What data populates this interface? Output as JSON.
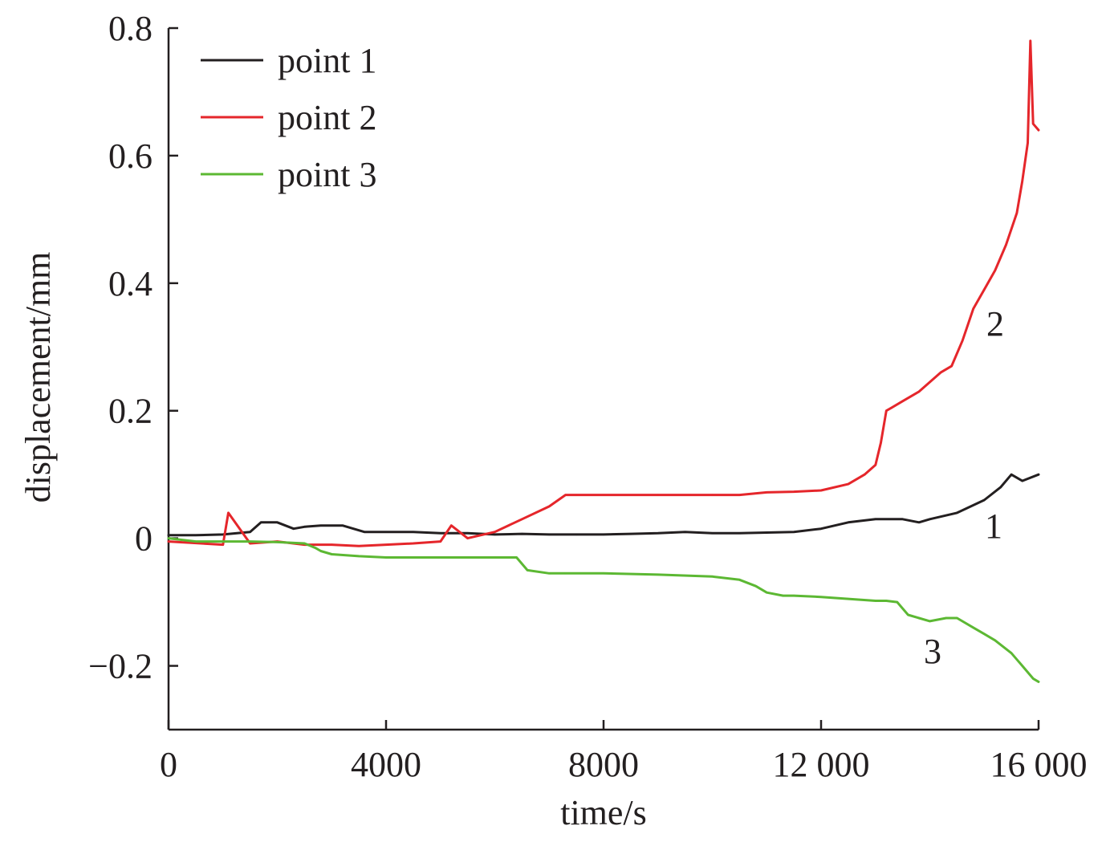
{
  "chart_data": {
    "type": "line",
    "xlabel": "time/s",
    "ylabel": "displacement/mm",
    "xlim": [
      0,
      16000
    ],
    "ylim": [
      -0.3,
      0.8
    ],
    "xticks": [
      0,
      4000,
      8000,
      12000,
      16000
    ],
    "xtick_labels": [
      "0",
      "4000",
      "8000",
      "12 000",
      "16 000"
    ],
    "yticks": [
      -0.2,
      0,
      0.2,
      0.4,
      0.6,
      0.8
    ],
    "ytick_labels": [
      "−0.2",
      "0",
      "0.2",
      "0.4",
      "0.6",
      "0.8"
    ],
    "grid": false,
    "legend_position": "top-left",
    "series": [
      {
        "name": "point 1",
        "curve_label": "1",
        "color": "#231f20",
        "x": [
          0,
          500,
          1000,
          1500,
          1700,
          2000,
          2300,
          2500,
          2800,
          3200,
          3600,
          4000,
          4500,
          5000,
          5500,
          6000,
          6500,
          7000,
          7500,
          8000,
          8500,
          9000,
          9500,
          10000,
          10500,
          11000,
          11500,
          12000,
          12500,
          13000,
          13500,
          13800,
          14000,
          14500,
          15000,
          15300,
          15500,
          15700,
          16000
        ],
        "y": [
          0.005,
          0.005,
          0.006,
          0.01,
          0.025,
          0.025,
          0.015,
          0.018,
          0.02,
          0.02,
          0.01,
          0.01,
          0.01,
          0.008,
          0.008,
          0.006,
          0.007,
          0.006,
          0.006,
          0.006,
          0.007,
          0.008,
          0.01,
          0.008,
          0.008,
          0.009,
          0.01,
          0.015,
          0.025,
          0.03,
          0.03,
          0.025,
          0.03,
          0.04,
          0.06,
          0.08,
          0.1,
          0.09,
          0.1
        ]
      },
      {
        "name": "point 2",
        "curve_label": "2",
        "color": "#e5262b",
        "x": [
          0,
          1000,
          1100,
          1500,
          2000,
          2500,
          3000,
          3500,
          4000,
          4500,
          5000,
          5200,
          5500,
          6000,
          6500,
          7000,
          7300,
          7500,
          8000,
          9000,
          9600,
          10000,
          10500,
          11000,
          11500,
          12000,
          12500,
          12800,
          13000,
          13100,
          13200,
          13300,
          13500,
          13800,
          14000,
          14200,
          14400,
          14600,
          14800,
          15000,
          15200,
          15400,
          15600,
          15700,
          15800,
          15850,
          15900,
          16000
        ],
        "y": [
          -0.005,
          -0.01,
          0.04,
          -0.008,
          -0.005,
          -0.01,
          -0.01,
          -0.012,
          -0.01,
          -0.008,
          -0.005,
          0.02,
          0.0,
          0.01,
          0.03,
          0.05,
          0.068,
          0.068,
          0.068,
          0.068,
          0.068,
          0.068,
          0.068,
          0.072,
          0.073,
          0.075,
          0.085,
          0.1,
          0.115,
          0.15,
          0.2,
          0.205,
          0.215,
          0.23,
          0.245,
          0.26,
          0.27,
          0.31,
          0.36,
          0.39,
          0.42,
          0.46,
          0.51,
          0.56,
          0.62,
          0.78,
          0.65,
          0.64
        ]
      },
      {
        "name": "point 3",
        "curve_label": "3",
        "color": "#5cb833",
        "x": [
          0,
          500,
          1000,
          1500,
          2000,
          2500,
          2700,
          2800,
          3000,
          3500,
          4000,
          5000,
          6000,
          6400,
          6600,
          7000,
          7300,
          8000,
          9000,
          10000,
          10500,
          10800,
          11000,
          11300,
          11500,
          12000,
          12500,
          13000,
          13200,
          13400,
          13600,
          13800,
          14000,
          14300,
          14500,
          14800,
          15000,
          15200,
          15500,
          15700,
          15800,
          15900,
          16000
        ],
        "y": [
          0.0,
          -0.005,
          -0.005,
          -0.005,
          -0.006,
          -0.008,
          -0.015,
          -0.02,
          -0.025,
          -0.028,
          -0.03,
          -0.03,
          -0.03,
          -0.03,
          -0.05,
          -0.055,
          -0.055,
          -0.055,
          -0.057,
          -0.06,
          -0.065,
          -0.075,
          -0.085,
          -0.09,
          -0.09,
          -0.092,
          -0.095,
          -0.098,
          -0.098,
          -0.1,
          -0.12,
          -0.125,
          -0.13,
          -0.125,
          -0.125,
          -0.14,
          -0.15,
          -0.16,
          -0.18,
          -0.2,
          -0.21,
          -0.22,
          -0.225
        ]
      }
    ]
  }
}
